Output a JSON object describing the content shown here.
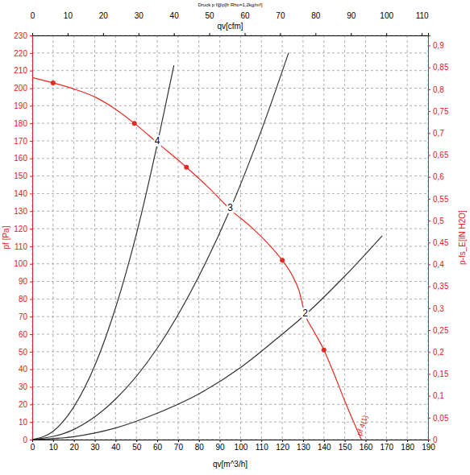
{
  "chart_data": {
    "type": "line",
    "title": "Druck p f@p[fr Rho=1,2kg/m³]",
    "x_label": "qv[m^3/h]",
    "x2_label": "qv[cfm]",
    "y_label": "pf [Pa]",
    "y2_label": "p-fs_E[IN H2O]",
    "grid": true,
    "xlim": [
      0,
      190
    ],
    "xticks": [
      0,
      10,
      20,
      30,
      40,
      50,
      60,
      70,
      80,
      90,
      100,
      110,
      120,
      130,
      140,
      150,
      160,
      170,
      180,
      190
    ],
    "x2lim": [
      0,
      111.8
    ],
    "x2ticks": [
      0,
      10,
      20,
      30,
      40,
      50,
      60,
      70,
      80,
      90,
      100,
      110
    ],
    "ylim": [
      0,
      230
    ],
    "yticks": [
      0,
      10,
      20,
      30,
      40,
      50,
      60,
      70,
      80,
      90,
      100,
      110,
      120,
      130,
      140,
      150,
      160,
      170,
      180,
      190,
      200,
      210,
      220,
      230
    ],
    "y2lim": [
      0,
      0.923
    ],
    "y2ticks": [
      0,
      {
        "value": 0.05,
        "label": "0,05"
      },
      {
        "value": 0.1,
        "label": "0,1"
      },
      {
        "value": 0.15,
        "label": "0,15"
      },
      {
        "value": 0.2,
        "label": "0,2"
      },
      {
        "value": 0.25,
        "label": "0,25"
      },
      {
        "value": 0.3,
        "label": "0,3"
      },
      {
        "value": 0.35,
        "label": "0,35"
      },
      {
        "value": 0.4,
        "label": "0,4"
      },
      {
        "value": 0.45,
        "label": "0,45"
      },
      {
        "value": 0.5,
        "label": "0,5"
      },
      {
        "value": 0.55,
        "label": "0,55"
      },
      {
        "value": 0.6,
        "label": "0,6"
      },
      {
        "value": 0.65,
        "label": "0,65"
      },
      {
        "value": 0.7,
        "label": "0,7"
      },
      {
        "value": 0.75,
        "label": "0,75"
      },
      {
        "value": 0.8,
        "label": "0,8"
      },
      {
        "value": 0.85,
        "label": "0,85"
      },
      {
        "value": 0.9,
        "label": "0,9"
      }
    ],
    "series": [
      {
        "type": "line",
        "color": "#e32b22",
        "x": [
          0,
          10,
          20,
          30,
          40,
          49,
          60,
          74,
          85,
          95,
          105,
          112,
          120,
          125,
          128,
          131,
          135,
          140,
          145,
          150,
          155,
          158
        ],
        "values": [
          206,
          203,
          199.5,
          195,
          188,
          180,
          169,
          155,
          143,
          131,
          121,
          113,
          102,
          93,
          85,
          71,
          62,
          51,
          37,
          22,
          8,
          0
        ]
      },
      {
        "type": "scatter",
        "color": "#e32b22",
        "marker": "circle",
        "x": [
          10,
          49,
          74,
          120,
          140
        ],
        "values": [
          203,
          180,
          155,
          102,
          51
        ]
      },
      {
        "type": "line",
        "color": "#333333",
        "x": [
          0,
          10,
          20,
          30,
          40,
          50,
          60,
          68
        ],
        "values": [
          0,
          4.7,
          18.7,
          42,
          75,
          117,
          168,
          213
        ]
      },
      {
        "type": "line",
        "color": "#333333",
        "x": [
          0,
          20,
          40,
          60,
          80,
          95,
          110,
          123
        ],
        "values": [
          0,
          5.8,
          23,
          52,
          93,
          131,
          176,
          220
        ]
      },
      {
        "type": "line",
        "color": "#333333",
        "x": [
          0,
          20,
          40,
          60,
          80,
          100,
          120,
          131,
          150,
          168
        ],
        "values": [
          0,
          1.7,
          6.6,
          15,
          26,
          41,
          60,
          71,
          93,
          116
        ]
      }
    ],
    "annotations": [
      {
        "text": "4",
        "x": 60,
        "y": 170
      },
      {
        "text": "3",
        "x": 95,
        "y": 132
      },
      {
        "text": "2",
        "x": 131,
        "y": 72
      },
      {
        "text": "pf 4(1)",
        "x": 158,
        "y": 2
      }
    ]
  }
}
